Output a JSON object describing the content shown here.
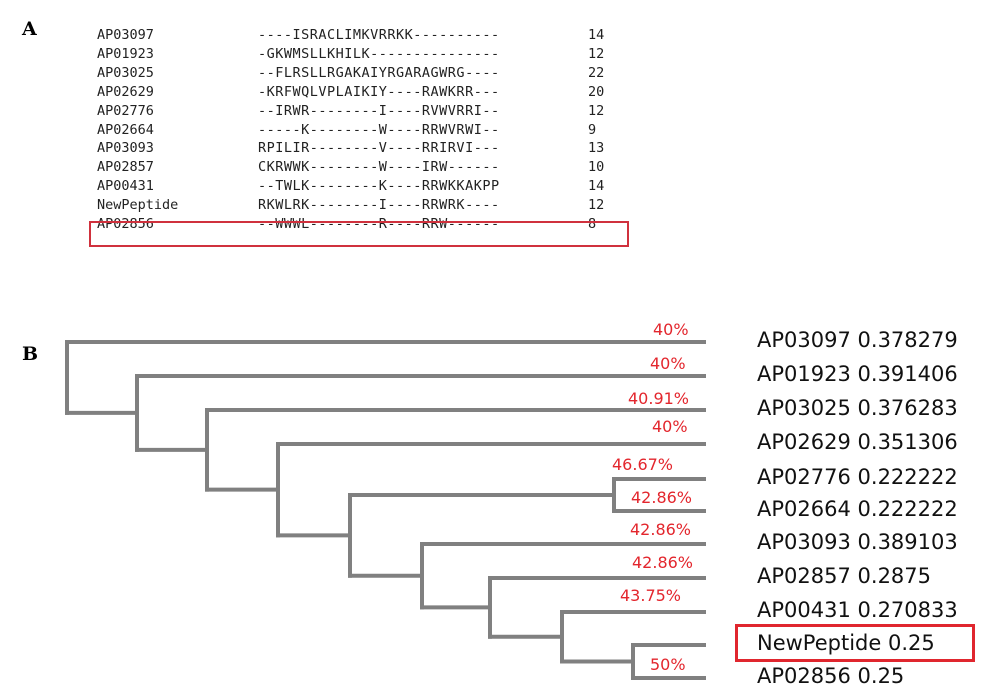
{
  "panel_a": {
    "label": "A",
    "rows": [
      {
        "id": "AP03097",
        "seq": "----ISRACLIMKVRRKK----------",
        "len": "14"
      },
      {
        "id": "AP01923",
        "seq": "-GKWMSLLKHILK---------------",
        "len": "12"
      },
      {
        "id": "AP03025",
        "seq": "--FLRSLLRGAKAIYRGARAGWRG----",
        "len": "22"
      },
      {
        "id": "AP02629",
        "seq": "-KRFWQLVPLAIKIY----RAWKRR---",
        "len": "20"
      },
      {
        "id": "AP02776",
        "seq": "--IRWR--------I----RVWVRRI--",
        "len": "12"
      },
      {
        "id": "AP02664",
        "seq": "-----K--------W----RRWVRWI--",
        "len": "9"
      },
      {
        "id": "AP03093",
        "seq": "RPILIR--------V----RRIRVI---",
        "len": "13"
      },
      {
        "id": "AP02857",
        "seq": "CKRWWK--------W----IRW------",
        "len": "10"
      },
      {
        "id": "AP00431",
        "seq": "--TWLK--------K----RRWKKAKPP",
        "len": "14"
      },
      {
        "id": "NewPeptide",
        "seq": "RKWLRK--------I----RRWRK----",
        "len": "12"
      },
      {
        "id": "AP02856",
        "seq": "--WWWL--------R----RRW------",
        "len": "8"
      }
    ]
  },
  "panel_b": {
    "label": "B",
    "leaves": [
      {
        "name": "AP03097",
        "value": "0.378279"
      },
      {
        "name": "AP01923",
        "value": "0.391406"
      },
      {
        "name": "AP03025",
        "value": "0.376283"
      },
      {
        "name": "AP02629",
        "value": "0.351306"
      },
      {
        "name": "AP02776",
        "value": "0.222222"
      },
      {
        "name": "AP02664",
        "value": "0.222222"
      },
      {
        "name": "AP03093",
        "value": "0.389103"
      },
      {
        "name": "AP02857",
        "value": "0.2875"
      },
      {
        "name": "AP00431",
        "value": "0.270833"
      },
      {
        "name": "NewPeptide",
        "value": "0.25"
      },
      {
        "name": "AP02856",
        "value": "0.25"
      }
    ],
    "branch_labels": [
      "40%",
      "40%",
      "40.91%",
      "40%",
      "46.67%",
      "42.86%",
      "42.86%",
      "42.86%",
      "43.75%",
      "50%"
    ],
    "colors": {
      "tree": "#808080",
      "percent": "#e3262d",
      "highlight": "#d0313d"
    }
  }
}
